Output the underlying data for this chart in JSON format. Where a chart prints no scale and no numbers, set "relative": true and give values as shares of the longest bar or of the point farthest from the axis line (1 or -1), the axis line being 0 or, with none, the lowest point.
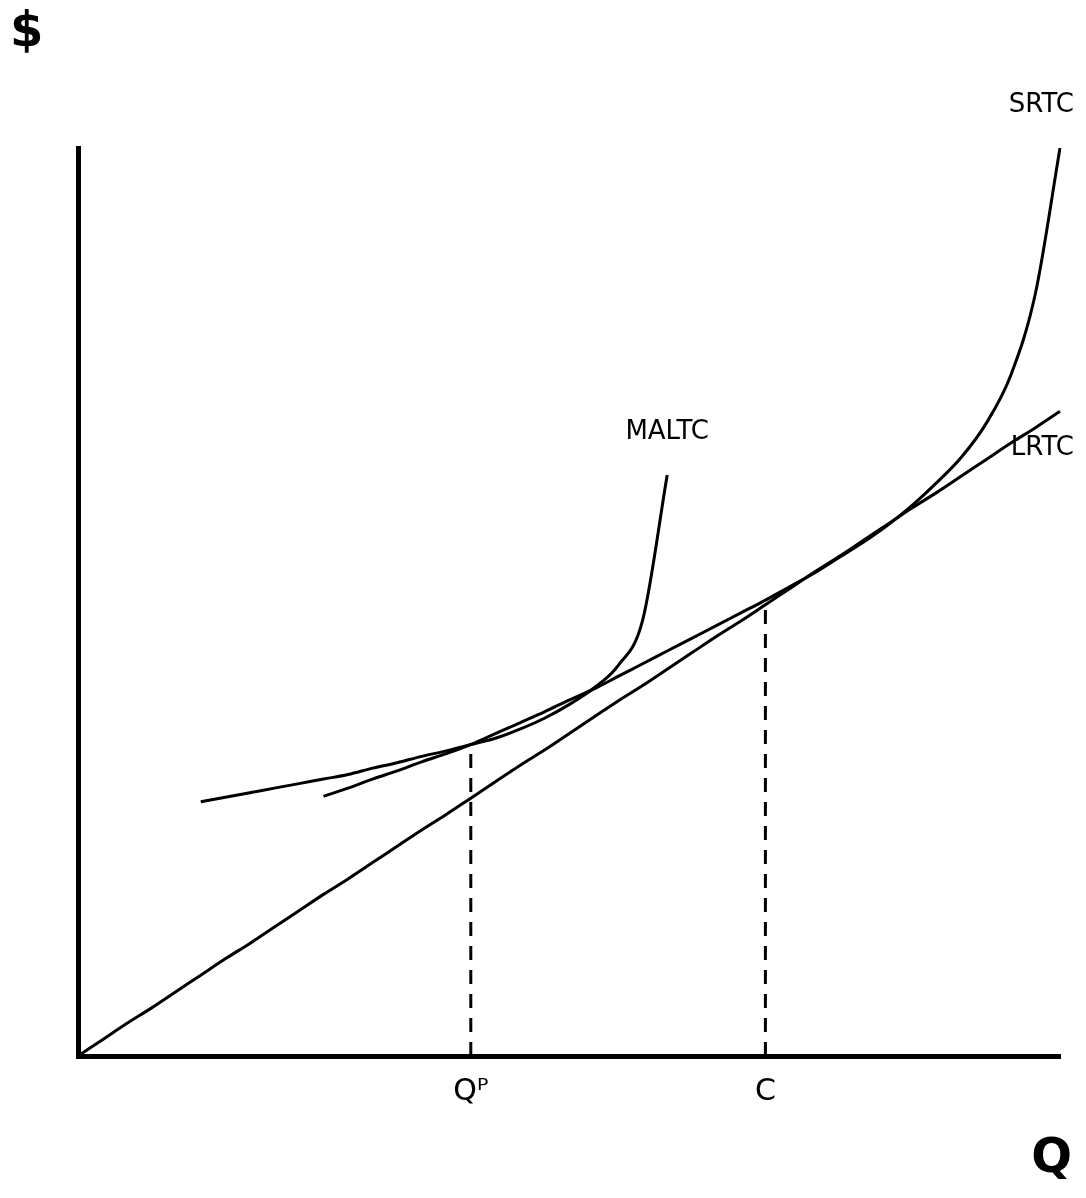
{
  "chart_data": {
    "type": "line",
    "relative": true,
    "xlabel": "Q",
    "ylabel": "$",
    "tick_labels": "x",
    "grid": false,
    "legend": false,
    "marker": "none",
    "categories": [
      null,
      null,
      null,
      null,
      null,
      null,
      null,
      null,
      null,
      null,
      null,
      null,
      null,
      null,
      null,
      null,
      "Qᴾ",
      null,
      null,
      null,
      null,
      null,
      null,
      null,
      null,
      null,
      null,
      null,
      "C",
      null,
      null,
      null,
      null,
      null,
      null,
      null,
      null,
      null,
      null,
      null,
      null
    ],
    "series": [
      {
        "name": "LRTC",
        "color": "#000000",
        "values": [
          0,
          0.018,
          0.036,
          0.053,
          0.071,
          0.089,
          0.107,
          0.124,
          0.142,
          0.16,
          0.178,
          0.195,
          0.213,
          0.231,
          0.249,
          0.266,
          0.284,
          0.302,
          0.32,
          0.337,
          0.355,
          0.373,
          0.391,
          0.408,
          0.426,
          0.444,
          0.462,
          0.479,
          0.497,
          0.515,
          0.533,
          0.55,
          0.568,
          0.586,
          0.604,
          0.621,
          0.639,
          0.657,
          0.675,
          0.692,
          0.71
        ]
      },
      {
        "name": "MALTC",
        "color": "#000000",
        "values": [
          null,
          null,
          null,
          null,
          null,
          0.28,
          0.285,
          0.29,
          0.295,
          0.3,
          0.305,
          0.31,
          0.317,
          0.323,
          0.33,
          0.336,
          0.343,
          0.35,
          0.36,
          0.372,
          0.387,
          0.405,
          0.43,
          0.48,
          0.64,
          null,
          null,
          null,
          null,
          null,
          null,
          null,
          null,
          null,
          null,
          null,
          null,
          null,
          null,
          null,
          null
        ]
      },
      {
        "name": "SRTC",
        "color": "#000000",
        "values": [
          null,
          null,
          null,
          null,
          null,
          null,
          null,
          null,
          null,
          null,
          0.286,
          0.295,
          0.305,
          0.314,
          0.324,
          0.333,
          0.343,
          0.355,
          0.367,
          0.379,
          0.392,
          0.404,
          0.418,
          0.432,
          0.446,
          0.46,
          0.474,
          0.488,
          0.502,
          0.517,
          0.532,
          0.549,
          0.566,
          0.585,
          0.607,
          0.632,
          0.66,
          0.697,
          0.75,
          0.84,
          1.0
        ]
      }
    ],
    "ref_lines": [
      {
        "axis": "x",
        "value": "Qᴾ",
        "line_style": "dashed",
        "color": "#000000"
      },
      {
        "axis": "x",
        "value": "C",
        "line_style": "dashed",
        "color": "#000000"
      }
    ]
  }
}
